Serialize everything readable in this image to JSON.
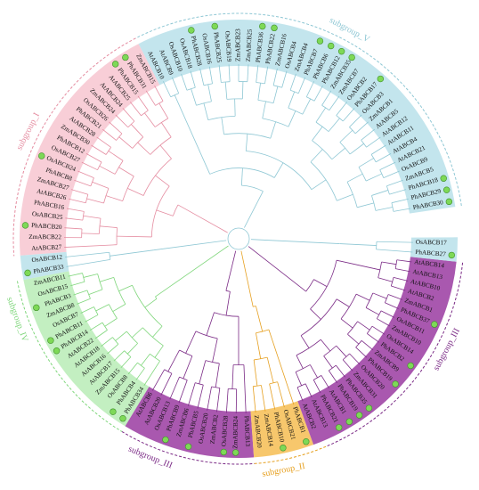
{
  "colors": {
    "subgroup_I": "#f7c6d0",
    "subgroup_II": "#f6bd52",
    "subgroup_III": "#a24aa8",
    "subgroup_IV": "#b8ecb6",
    "subgroup_V": "#b9e0ea",
    "line_I": "#e58da1",
    "line_II": "#e6a020",
    "line_III": "#7b2b86",
    "line_IV": "#7fd67b",
    "line_V": "#8ec7d4",
    "marker": "#7ed957",
    "marker_stroke": "#3f8f2a"
  },
  "groups": [
    {
      "key": "V",
      "label": "subgroup_V",
      "color_key": "line_V"
    },
    {
      "key": "III",
      "label": "subgroup_III",
      "color_key": "line_III"
    },
    {
      "key": "II",
      "label": "subgroup_II",
      "color_key": "line_II"
    },
    {
      "key": "III",
      "label": "subgroup_III",
      "color_key": "line_III"
    },
    {
      "key": "IV",
      "label": "subgroup_IV",
      "color_key": "line_IV"
    },
    {
      "key": "I",
      "label": "subgroup_I",
      "color_key": "line_I"
    }
  ],
  "leaves": [
    {
      "label": "PhABCB30",
      "group": "V",
      "marked": true
    },
    {
      "label": "PhABCB29",
      "group": "V",
      "marked": true
    },
    {
      "label": "PhABCB18",
      "group": "V",
      "marked": true
    },
    {
      "label": "ZmABCB5",
      "group": "V",
      "marked": false
    },
    {
      "label": "OsABCB9",
      "group": "V",
      "marked": false
    },
    {
      "label": "AtABCB21",
      "group": "V",
      "marked": false
    },
    {
      "label": "AtABCB4",
      "group": "V",
      "marked": false
    },
    {
      "label": "AtABCB11",
      "group": "V",
      "marked": false
    },
    {
      "label": "AtABCB12",
      "group": "V",
      "marked": false
    },
    {
      "label": "AtABCB5",
      "group": "V",
      "marked": false
    },
    {
      "label": "ZmABCB1",
      "group": "V",
      "marked": false
    },
    {
      "label": "OsABCB3",
      "group": "V",
      "marked": false
    },
    {
      "label": "PhABCB17",
      "group": "V",
      "marked": true
    },
    {
      "label": "OsABCB2",
      "group": "V",
      "marked": false
    },
    {
      "label": "ZmABCB7",
      "group": "V",
      "marked": false
    },
    {
      "label": "ZmABCB35",
      "group": "V",
      "marked": true
    },
    {
      "label": "PhABCB12",
      "group": "V",
      "marked": true
    },
    {
      "label": "PhABCB6",
      "group": "V",
      "marked": true
    },
    {
      "label": "PhABCB7",
      "group": "V",
      "marked": true
    },
    {
      "label": "ZmABCB4",
      "group": "V",
      "marked": false
    },
    {
      "label": "OsABCB4",
      "group": "V",
      "marked": false
    },
    {
      "label": "ZmABCB16",
      "group": "V",
      "marked": false
    },
    {
      "label": "PhABCB22",
      "group": "V",
      "marked": true
    },
    {
      "label": "PhABCB36",
      "group": "V",
      "marked": true
    },
    {
      "label": "ZmABCB25",
      "group": "V",
      "marked": false
    },
    {
      "label": "ZmABCB23",
      "group": "V",
      "marked": false
    },
    {
      "label": "OsABCB19",
      "group": "V",
      "marked": false
    },
    {
      "label": "PhABCB25",
      "group": "V",
      "marked": true
    },
    {
      "label": "OsABCB16",
      "group": "V",
      "marked": false
    },
    {
      "label": "PhABCB28",
      "group": "V",
      "marked": true
    },
    {
      "label": "OsABCB18",
      "group": "V",
      "marked": false
    },
    {
      "label": "OsABCB10",
      "group": "V",
      "marked": false
    },
    {
      "label": "AtABCB9",
      "group": "V",
      "marked": false
    },
    {
      "label": "AtABCB10",
      "group": "V",
      "marked": false
    },
    {
      "label": "ZmABCB15",
      "group": "I",
      "marked": false
    },
    {
      "label": "PhABCB31",
      "group": "I",
      "marked": true
    },
    {
      "label": "PhABCB15",
      "group": "I",
      "marked": true
    },
    {
      "label": "AtABCB25",
      "group": "I",
      "marked": false
    },
    {
      "label": "AtABCB24",
      "group": "I",
      "marked": false
    },
    {
      "label": "ZmABCB24",
      "group": "I",
      "marked": false
    },
    {
      "label": "OsABCB26",
      "group": "I",
      "marked": false
    },
    {
      "label": "PhABCB21",
      "group": "I",
      "marked": false
    },
    {
      "label": "AtABCB28",
      "group": "I",
      "marked": false
    },
    {
      "label": "ZmABCB30",
      "group": "I",
      "marked": false
    },
    {
      "label": "PhABCB12",
      "group": "I",
      "marked": false
    },
    {
      "label": "OsABCB27",
      "group": "I",
      "marked": false
    },
    {
      "label": "OsABCB24",
      "group": "I",
      "marked": true
    },
    {
      "label": "PhABCB8",
      "group": "I",
      "marked": false
    },
    {
      "label": "ZmABCB27",
      "group": "I",
      "marked": false
    },
    {
      "label": "AtABCB26",
      "group": "I",
      "marked": false
    },
    {
      "label": "PhABCB16",
      "group": "I",
      "marked": false
    },
    {
      "label": "OsABCB25",
      "group": "I",
      "marked": false
    },
    {
      "label": "PhABCB20",
      "group": "I",
      "marked": true
    },
    {
      "label": "ZmABCB22",
      "group": "I",
      "marked": false
    },
    {
      "label": "AtABCB27",
      "group": "I",
      "marked": false
    },
    {
      "label": "OsABCB12",
      "group": "V",
      "marked": false
    },
    {
      "label": "PhABCB33",
      "group": "V",
      "marked": true
    },
    {
      "label": "ZmABCB11",
      "group": "IV",
      "marked": false
    },
    {
      "label": "OsABCB15",
      "group": "IV",
      "marked": false
    },
    {
      "label": "PhABCB3",
      "group": "IV",
      "marked": true
    },
    {
      "label": "ZmABCB8",
      "group": "IV",
      "marked": false
    },
    {
      "label": "OsABCB7",
      "group": "IV",
      "marked": false
    },
    {
      "label": "PhABCB11",
      "group": "IV",
      "marked": true
    },
    {
      "label": "PhABCB14",
      "group": "IV",
      "marked": true
    },
    {
      "label": "AtABCB22",
      "group": "IV",
      "marked": false
    },
    {
      "label": "AtABCB18",
      "group": "IV",
      "marked": false
    },
    {
      "label": "AtABCB16",
      "group": "IV",
      "marked": false
    },
    {
      "label": "AtABCB17",
      "group": "IV",
      "marked": false
    },
    {
      "label": "ZmABCB15",
      "group": "IV",
      "marked": false
    },
    {
      "label": "OsABCB8",
      "group": "IV",
      "marked": false
    },
    {
      "label": "PhABCB4",
      "group": "IV",
      "marked": true
    },
    {
      "label": "PhABCB34",
      "group": "IV",
      "marked": true
    },
    {
      "label": "AtABCB6",
      "group": "III",
      "marked": false
    },
    {
      "label": "AtABCB20",
      "group": "III",
      "marked": false
    },
    {
      "label": "OsABCB13",
      "group": "III",
      "marked": false
    },
    {
      "label": "PhABCB9",
      "group": "III",
      "marked": true
    },
    {
      "label": "ZmABCB6",
      "group": "III",
      "marked": false
    },
    {
      "label": "PhABCB5",
      "group": "III",
      "marked": true
    },
    {
      "label": "OsABCB20",
      "group": "III",
      "marked": false
    },
    {
      "label": "ZmABCB2",
      "group": "III",
      "marked": false
    },
    {
      "label": "OsABCB28",
      "group": "III",
      "marked": true
    },
    {
      "label": "ZmABCB24",
      "group": "III",
      "marked": true
    },
    {
      "label": "PhABCB13",
      "group": "III",
      "marked": false
    },
    {
      "label": "ZmABCB20",
      "group": "II",
      "marked": false
    },
    {
      "label": "ZmABCB14",
      "group": "II",
      "marked": false
    },
    {
      "label": "PhABCB10",
      "group": "II",
      "marked": true
    },
    {
      "label": "OsABCB21",
      "group": "II",
      "marked": false
    },
    {
      "label": "PhABCB1",
      "group": "II",
      "marked": true
    },
    {
      "label": "AtABCB2",
      "group": "III",
      "marked": false
    },
    {
      "label": "AtABCB13",
      "group": "III",
      "marked": false
    },
    {
      "label": "PhABCB21",
      "group": "III",
      "marked": true
    },
    {
      "label": "AtABCB1",
      "group": "III",
      "marked": true
    },
    {
      "label": "PhABCB19",
      "group": "III",
      "marked": true
    },
    {
      "label": "PhABCB35",
      "group": "III",
      "marked": true
    },
    {
      "label": "ZmABCB31",
      "group": "III",
      "marked": false
    },
    {
      "label": "OsABCB20",
      "group": "III",
      "marked": false
    },
    {
      "label": "PhABCB19",
      "group": "III",
      "marked": true
    },
    {
      "label": "ZmABCB9",
      "group": "III",
      "marked": false
    },
    {
      "label": "PhABCB2",
      "group": "III",
      "marked": true
    },
    {
      "label": "OsABCB14",
      "group": "III",
      "marked": false
    },
    {
      "label": "ZmABCB10",
      "group": "III",
      "marked": false
    },
    {
      "label": "OsABCB11",
      "group": "III",
      "marked": false
    },
    {
      "label": "PhABCB37",
      "group": "III",
      "marked": true
    },
    {
      "label": "ZmABCB1",
      "group": "III",
      "marked": false
    },
    {
      "label": "AtABCB2",
      "group": "III",
      "marked": false
    },
    {
      "label": "AtABCB10",
      "group": "III",
      "marked": false
    },
    {
      "label": "AtABCB13",
      "group": "III",
      "marked": false
    },
    {
      "label": "AtABCB14",
      "group": "III",
      "marked": false
    },
    {
      "label": "PhABCB27",
      "group": "V",
      "marked": true
    },
    {
      "label": "OsABCB17",
      "group": "V",
      "marked": false
    }
  ]
}
